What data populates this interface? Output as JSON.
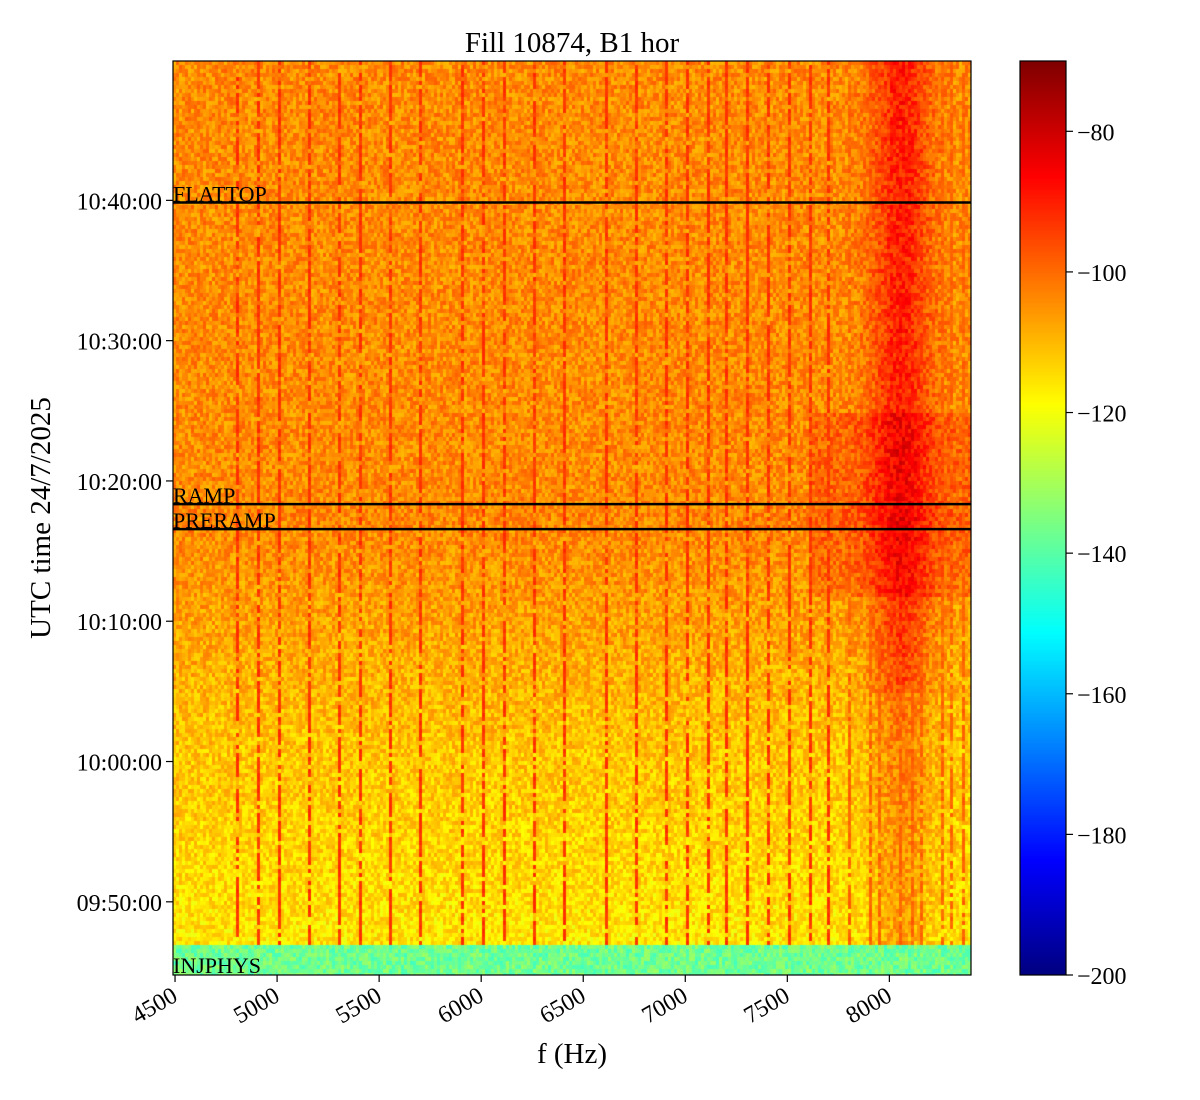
{
  "chart_data": {
    "type": "heatmap",
    "title": "Fill 10874, B1 hor",
    "xlabel": "f (Hz)",
    "ylabel": "UTC time 24/7/2025",
    "xlim": [
      4490,
      8400
    ],
    "ylim": [
      "09:44:47",
      "10:49:56"
    ],
    "xticks": [
      4500,
      5000,
      5500,
      6000,
      6500,
      7000,
      7500,
      8000
    ],
    "yticks": [
      "09:50:00",
      "10:00:00",
      "10:10:00",
      "10:20:00",
      "10:30:00",
      "10:40:00"
    ],
    "colormap": "jet",
    "clim": [
      -200,
      -70
    ],
    "colorbar_ticks": [
      -80,
      -100,
      -120,
      -140,
      -160,
      -180,
      -200
    ],
    "colorbar_tick_labels": [
      "−80",
      "−100",
      "−120",
      "−140",
      "−160",
      "−180",
      "−200"
    ],
    "annotations": [
      {
        "label": "FLATTOP",
        "time": "10:39:51",
        "line": true
      },
      {
        "label": "RAMP",
        "time": "10:18:21",
        "line": true
      },
      {
        "label": "PRERAMP",
        "time": "10:16:34",
        "line": true
      },
      {
        "label": "INJPHYS",
        "time": "09:44:47",
        "line": false
      }
    ],
    "grid": false
  }
}
